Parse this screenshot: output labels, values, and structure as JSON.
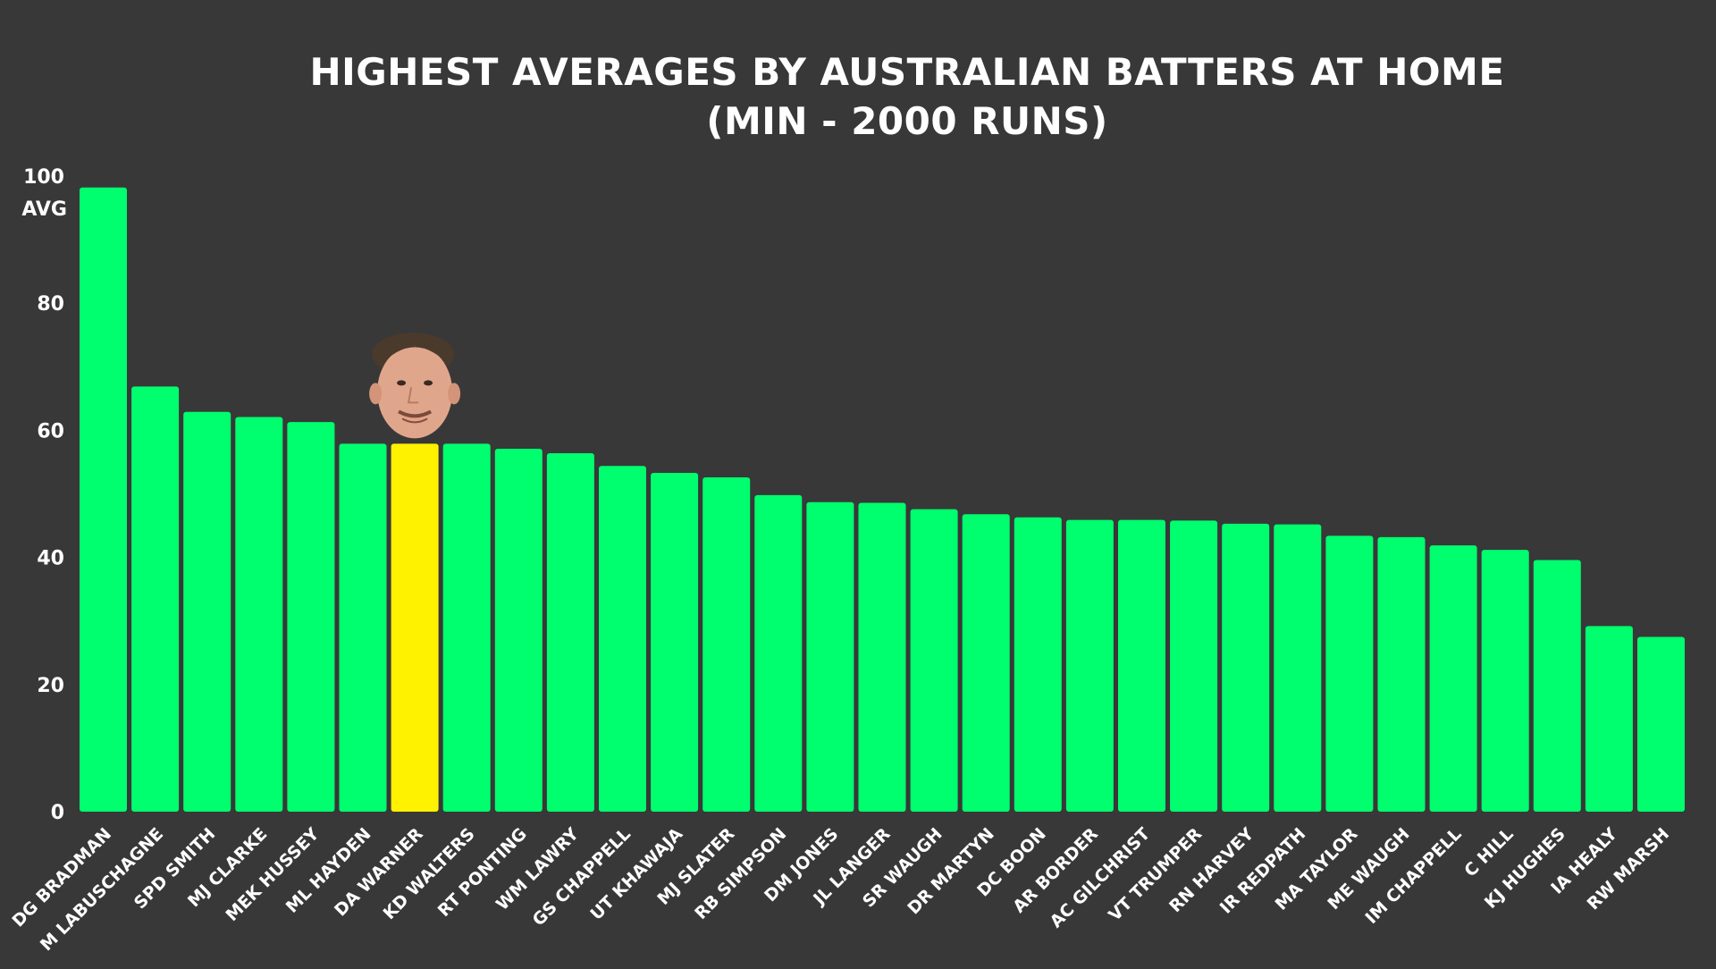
{
  "chart_data": {
    "type": "bar",
    "title": "HIGHEST AVERAGES BY AUSTRALIAN BATTERS AT HOME",
    "subtitle": "(MIN - 2000 RUNS)",
    "ylabel": "AVG",
    "xlabel": "",
    "ylim": [
      0,
      100
    ],
    "yticks": [
      "100",
      "80",
      "60",
      "40",
      "20",
      "0"
    ],
    "grid": false,
    "categories": [
      "DG BRADMAN",
      "M LABUSCHAGNE",
      "SPD SMITH",
      "MJ CLARKE",
      "MEK HUSSEY",
      "ML HAYDEN",
      "DA WARNER",
      "KD WALTERS",
      "RT PONTING",
      "WM LAWRY",
      "GS CHAPPELL",
      "UT KHAWAJA",
      "MJ SLATER",
      "RB SIMPSON",
      "DM JONES",
      "JL LANGER",
      "SR WAUGH",
      "DR MARTYN",
      "DC BOON",
      "AR BORDER",
      "AC GILCHRIST",
      "VT TRUMPER",
      "RN HARVEY",
      "IR REDPATH",
      "MA TAYLOR",
      "ME WAUGH",
      "IM CHAPPELL",
      "C HILL",
      "KJ HUGHES",
      "IA HEALY",
      "RW MARSH"
    ],
    "values": [
      98.2,
      66.9,
      62.9,
      62.1,
      61.3,
      57.9,
      57.9,
      57.9,
      57.1,
      56.4,
      54.4,
      53.3,
      52.6,
      49.8,
      48.7,
      48.6,
      47.6,
      46.8,
      46.3,
      45.9,
      45.9,
      45.8,
      45.3,
      45.2,
      43.4,
      43.2,
      41.9,
      41.2,
      39.6,
      29.2,
      27.5
    ],
    "highlight": "DA WARNER",
    "highlight_icon": "player-face-icon",
    "colors": {
      "bar": "#00ff6e",
      "highlight": "#fff200",
      "background": "#383838",
      "text": "#ffffff"
    }
  }
}
